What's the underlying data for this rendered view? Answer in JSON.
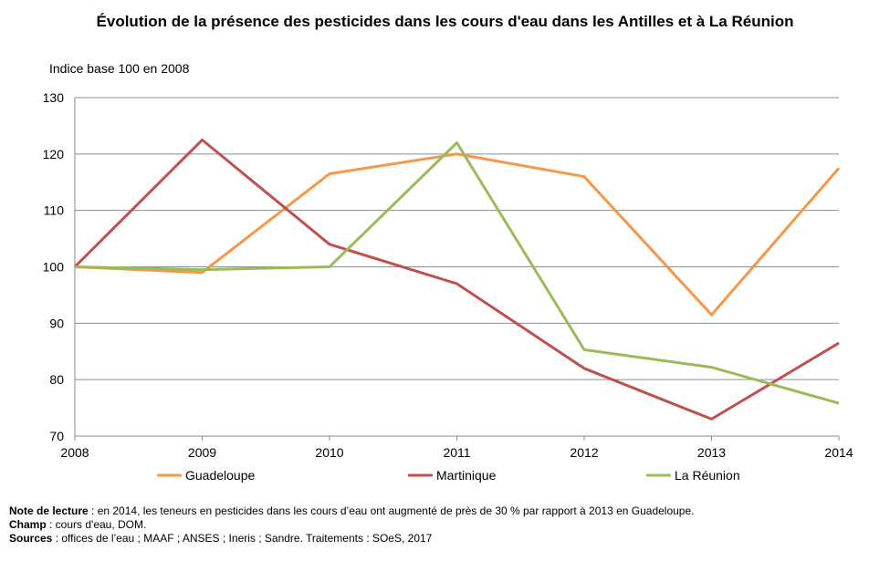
{
  "chart_data": {
    "type": "line",
    "title": "Évolution de la présence des pesticides dans les cours d'eau dans les Antilles et à La Réunion",
    "ylabel": "Indice base 100 en 2008",
    "xlabel": "",
    "x": [
      "2008",
      "2009",
      "2010",
      "2011",
      "2012",
      "2013",
      "2014"
    ],
    "ylim": [
      70,
      130
    ],
    "yticks": [
      70,
      80,
      90,
      100,
      110,
      120,
      130
    ],
    "grid": true,
    "legend_position": "bottom",
    "series": [
      {
        "name": "Guadeloupe",
        "color": "#F79646",
        "values": [
          100,
          99,
          116.5,
          120,
          116,
          91.5,
          117.5
        ]
      },
      {
        "name": "Martinique",
        "color": "#C0504D",
        "values": [
          100,
          122.5,
          104,
          97,
          82,
          73,
          86.5
        ]
      },
      {
        "name": "La Réunion",
        "color": "#9BBB59",
        "values": [
          100,
          99.5,
          100,
          122,
          85.3,
          82.2,
          75.8
        ]
      }
    ]
  },
  "notes": {
    "lecture_label": "Note de lecture",
    "lecture_text": " : en 2014, les teneurs en pesticides dans les cours d’eau ont augmenté de près de 30 % par rapport à 2013 en Guadeloupe.",
    "champ_label": "Champ",
    "champ_text": " : cours d'eau, DOM.",
    "sources_label": "Sources",
    "sources_text": " : offices de l’eau ; MAAF ; ANSES ; Ineris  ; Sandre. Traitements  : SOeS, 2017"
  }
}
